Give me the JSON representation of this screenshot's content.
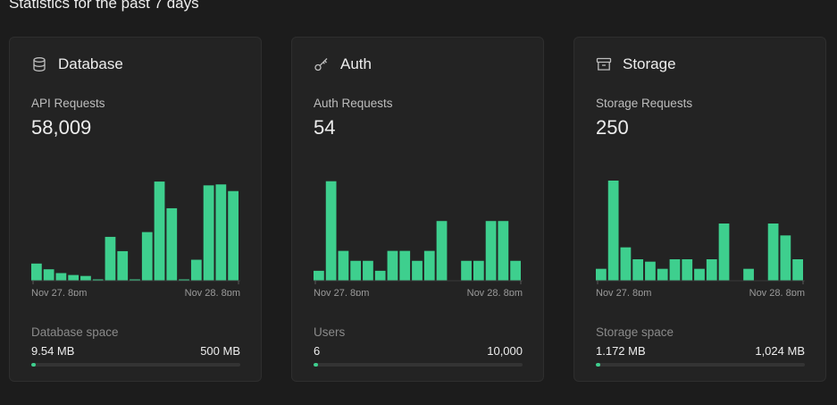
{
  "header": {
    "title": "Statistics for the past 7 days"
  },
  "colors": {
    "accent": "#3ecf8e",
    "card_bg": "#232323",
    "page_bg": "#1c1c1c"
  },
  "cards": [
    {
      "title": "Database",
      "icon": "database-icon",
      "metric_label": "API Requests",
      "metric_value": "58,009",
      "usage_label": "Database space",
      "usage_used": "9.54 MB",
      "usage_limit": "500 MB",
      "usage_fraction": 0.019
    },
    {
      "title": "Auth",
      "icon": "key-icon",
      "metric_label": "Auth Requests",
      "metric_value": "54",
      "usage_label": "Users",
      "usage_used": "6",
      "usage_limit": "10,000",
      "usage_fraction": 0.0006
    },
    {
      "title": "Storage",
      "icon": "archive-icon",
      "metric_label": "Storage Requests",
      "metric_value": "250",
      "usage_label": "Storage space",
      "usage_used": "1.172 MB",
      "usage_limit": "1,024 MB",
      "usage_fraction": 0.0011
    }
  ],
  "chart_data": [
    {
      "type": "bar",
      "title": "",
      "tick_labels": [
        "Nov 27, 8pm",
        "Nov 28, 8pm"
      ],
      "values": [
        18,
        12,
        8,
        6,
        5,
        1,
        46,
        31,
        1,
        51,
        104,
        76,
        1,
        22,
        100,
        101,
        94
      ],
      "ylim": [
        0,
        120
      ]
    },
    {
      "type": "bar",
      "title": "",
      "tick_labels": [
        "Nov 27, 8pm",
        "Nov 28, 8pm"
      ],
      "values": [
        1,
        10,
        3,
        2,
        2,
        1,
        3,
        3,
        2,
        3,
        6,
        0,
        2,
        2,
        6,
        6,
        2
      ],
      "ylim": [
        0,
        11.5
      ]
    },
    {
      "type": "bar",
      "title": "",
      "tick_labels": [
        "Nov 27, 8pm",
        "Nov 28, 8pm"
      ],
      "values": [
        5,
        42,
        14,
        9,
        8,
        5,
        9,
        9,
        5,
        9,
        24,
        0,
        5,
        0,
        24,
        19,
        9
      ],
      "ylim": [
        0,
        48
      ]
    }
  ]
}
